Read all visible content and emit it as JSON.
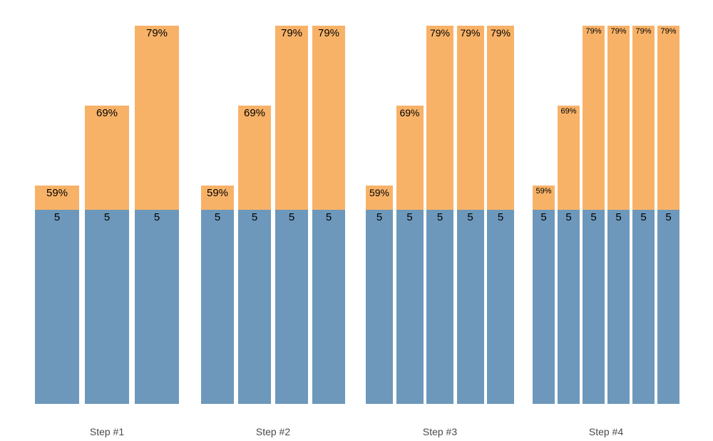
{
  "chart_data": {
    "type": "bar",
    "subtype": "grouped-stacked-columns",
    "title": "",
    "xlabel": "",
    "ylabel": "",
    "grid": false,
    "legend": "none",
    "base_value_label": "5",
    "colors": {
      "base_segment": "#6d98bb",
      "top_segment": "#f8b268",
      "bar_label": "#000000",
      "axis_label": "#4a4a4a",
      "background": "#ffffff"
    },
    "groups": [
      {
        "label": "Step #1",
        "bars": [
          {
            "base_value": 5,
            "base_label": "5",
            "percent": 59,
            "percent_label": "59%"
          },
          {
            "base_value": 5,
            "base_label": "5",
            "percent": 69,
            "percent_label": "69%"
          },
          {
            "base_value": 5,
            "base_label": "5",
            "percent": 79,
            "percent_label": "79%"
          }
        ]
      },
      {
        "label": "Step #2",
        "bars": [
          {
            "base_value": 5,
            "base_label": "5",
            "percent": 59,
            "percent_label": "59%"
          },
          {
            "base_value": 5,
            "base_label": "5",
            "percent": 69,
            "percent_label": "69%"
          },
          {
            "base_value": 5,
            "base_label": "5",
            "percent": 79,
            "percent_label": "79%"
          },
          {
            "base_value": 5,
            "base_label": "5",
            "percent": 79,
            "percent_label": "79%"
          }
        ]
      },
      {
        "label": "Step #3",
        "bars": [
          {
            "base_value": 5,
            "base_label": "5",
            "percent": 59,
            "percent_label": "59%"
          },
          {
            "base_value": 5,
            "base_label": "5",
            "percent": 69,
            "percent_label": "69%"
          },
          {
            "base_value": 5,
            "base_label": "5",
            "percent": 79,
            "percent_label": "79%"
          },
          {
            "base_value": 5,
            "base_label": "5",
            "percent": 79,
            "percent_label": "79%"
          },
          {
            "base_value": 5,
            "base_label": "5",
            "percent": 79,
            "percent_label": "79%"
          }
        ]
      },
      {
        "label": "Step #4",
        "bars": [
          {
            "base_value": 5,
            "base_label": "5",
            "percent": 59,
            "percent_label": "59%"
          },
          {
            "base_value": 5,
            "base_label": "5",
            "percent": 69,
            "percent_label": "69%"
          },
          {
            "base_value": 5,
            "base_label": "5",
            "percent": 79,
            "percent_label": "79%"
          },
          {
            "base_value": 5,
            "base_label": "5",
            "percent": 79,
            "percent_label": "79%"
          },
          {
            "base_value": 5,
            "base_label": "5",
            "percent": 79,
            "percent_label": "79%"
          },
          {
            "base_value": 5,
            "base_label": "5",
            "percent": 79,
            "percent_label": "79%"
          }
        ]
      }
    ]
  }
}
